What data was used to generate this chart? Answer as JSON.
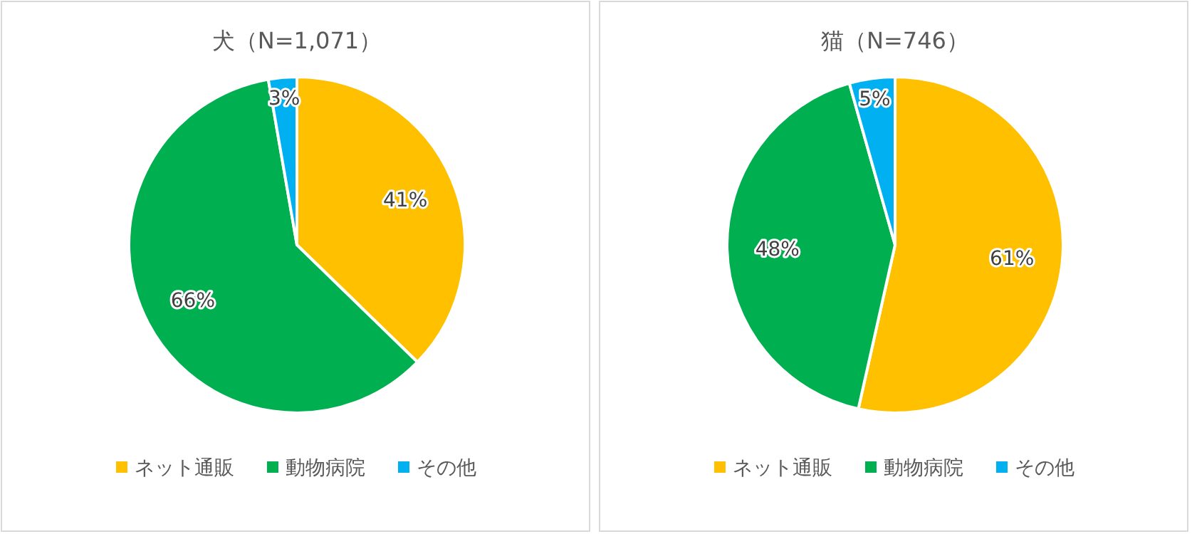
{
  "chart_data": [
    {
      "type": "pie",
      "title": "犬（N=1,071）",
      "categories": [
        "ネット通販",
        "動物病院",
        "その他"
      ],
      "values": [
        41,
        66,
        3
      ],
      "colors": [
        "#ffc000",
        "#00b050",
        "#00b0f0"
      ],
      "value_labels": [
        "41%",
        "66%",
        "3%"
      ],
      "legend": "bottom"
    },
    {
      "type": "pie",
      "title": "猫（N=746）",
      "categories": [
        "ネット通販",
        "動物病院",
        "その他"
      ],
      "values": [
        61,
        48,
        5
      ],
      "colors": [
        "#ffc000",
        "#00b050",
        "#00b0f0"
      ],
      "value_labels": [
        "61%",
        "48%",
        "5%"
      ],
      "legend": "bottom"
    }
  ]
}
